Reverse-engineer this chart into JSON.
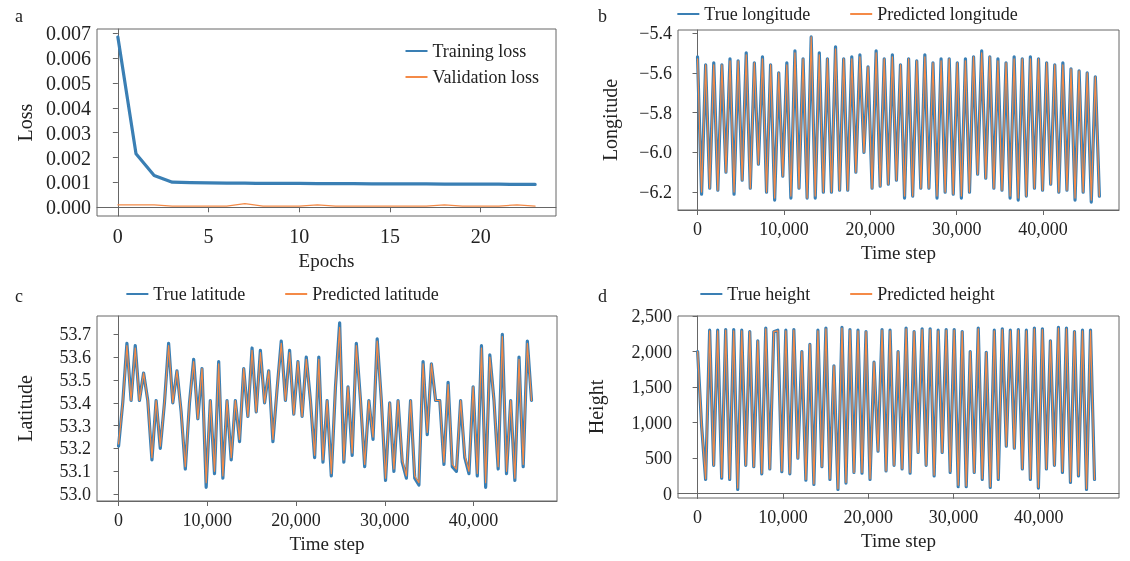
{
  "chart_data": [
    {
      "type": "line",
      "title": "a",
      "xlabel": "Epochs",
      "ylabel": "Loss",
      "legend": "top right",
      "x": [
        0,
        1,
        2,
        3,
        4,
        5,
        6,
        7,
        8,
        9,
        10,
        11,
        12,
        13,
        14,
        15,
        16,
        17,
        18,
        19,
        20,
        21,
        22,
        23
      ],
      "xlim": [
        -1.15,
        24.15
      ],
      "xticks": [
        0,
        5,
        10,
        15,
        20
      ],
      "ylim": [
        -0.00035,
        0.00717
      ],
      "yticks": [
        {
          "value": 0,
          "label": "0.000"
        },
        0.001,
        0.002,
        0.003,
        0.004,
        0.005,
        0.006,
        0.007
      ],
      "series": [
        {
          "name": "Training loss",
          "color": "#3a7fb4",
          "values": [
            0.00685,
            0.00215,
            0.00128,
            0.00101,
            0.00099,
            0.00098,
            0.00097,
            0.00097,
            0.00096,
            0.00096,
            0.00096,
            0.00095,
            0.00095,
            0.00095,
            0.00094,
            0.00094,
            0.00094,
            0.00094,
            0.00093,
            0.00093,
            0.00093,
            0.00093,
            0.00092,
            0.00092
          ]
        },
        {
          "name": "Validation loss",
          "color": "#f48a47",
          "values": [
            0.0001,
            0.0001,
            0.0001,
            5e-05,
            5e-05,
            5e-05,
            5e-05,
            0.00015,
            5e-05,
            5e-05,
            5e-05,
            0.0001,
            5e-05,
            5e-05,
            5e-05,
            5e-05,
            5e-05,
            5e-05,
            0.0001,
            5e-05,
            5e-05,
            5e-05,
            0.0001,
            5e-05
          ]
        }
      ]
    },
    {
      "type": "line",
      "title": "b",
      "xlabel": "Time step",
      "ylabel": "Longitude",
      "legend": "top",
      "x": [
        0,
        470,
        940,
        1410,
        1880,
        2350,
        2820,
        3290,
        3760,
        4230,
        4700,
        5170,
        5640,
        6110,
        6580,
        7050,
        7520,
        7990,
        8460,
        8930,
        9400,
        9870,
        10340,
        10810,
        11280,
        11750,
        12220,
        12690,
        13160,
        13630,
        14100,
        14570,
        15040,
        15510,
        15980,
        16450,
        16920,
        17390,
        17860,
        18330,
        18800,
        19270,
        19740,
        20210,
        20680,
        21150,
        21620,
        22090,
        22560,
        23030,
        23500,
        23970,
        24440,
        24910,
        25380,
        25850,
        26320,
        26790,
        27260,
        27730,
        28200,
        28670,
        29140,
        29610,
        30080,
        30550,
        31020,
        31490,
        31960,
        32430,
        32900,
        33370,
        33840,
        34310,
        34780,
        35250,
        35720,
        36190,
        36660,
        37130,
        37600,
        38070,
        38540,
        39010,
        39480,
        39950,
        40420,
        40890,
        41360,
        41830,
        42300,
        42770,
        43240,
        43710,
        44180,
        44650,
        45120,
        45590,
        46060,
        46530
      ],
      "xlim": [
        -2260,
        48800
      ],
      "xticks": [
        0,
        {
          "value": 10000,
          "label": "10,000"
        },
        {
          "value": 20000,
          "label": "20,000"
        },
        {
          "value": 30000,
          "label": "30,000"
        },
        {
          "value": 40000,
          "label": "40,000"
        }
      ],
      "ylim": [
        -6.29,
        -5.385
      ],
      "yticks": [
        {
          "value": -6.2,
          "label": "−6.2"
        },
        {
          "value": -6.0,
          "label": "−6.0"
        },
        {
          "value": -5.8,
          "label": "−5.8"
        },
        {
          "value": -5.6,
          "label": "−5.6"
        },
        {
          "value": -5.4,
          "label": "−5.4"
        }
      ],
      "series": [
        {
          "name": "True longitude",
          "color": "#3a7fb4",
          "values": [
            -5.52,
            -6.21,
            -5.56,
            -6.18,
            -5.55,
            -6.19,
            -5.56,
            -6.1,
            -5.53,
            -6.21,
            -5.54,
            -6.14,
            -5.5,
            -6.18,
            -5.55,
            -6.06,
            -5.52,
            -6.2,
            -5.56,
            -6.24,
            -5.6,
            -6.12,
            -5.55,
            -6.23,
            -5.49,
            -6.18,
            -5.53,
            -6.23,
            -5.42,
            -6.23,
            -5.5,
            -6.2,
            -5.53,
            -6.2,
            -5.47,
            -6.19,
            -5.53,
            -6.19,
            -5.52,
            -6.1,
            -5.51,
            -6.0,
            -5.57,
            -6.18,
            -5.49,
            -6.17,
            -5.53,
            -6.16,
            -5.51,
            -6.14,
            -5.56,
            -6.23,
            -5.53,
            -6.22,
            -5.54,
            -6.18,
            -5.51,
            -6.18,
            -5.55,
            -6.23,
            -5.53,
            -6.2,
            -5.53,
            -6.21,
            -5.55,
            -6.23,
            -5.53,
            -6.2,
            -5.52,
            -6.11,
            -5.49,
            -6.13,
            -5.52,
            -6.18,
            -5.53,
            -6.19,
            -5.55,
            -6.23,
            -5.52,
            -6.24,
            -5.53,
            -6.22,
            -5.52,
            -6.18,
            -5.53,
            -6.19,
            -5.55,
            -6.16,
            -5.56,
            -6.2,
            -5.55,
            -6.19,
            -5.58,
            -6.24,
            -5.59,
            -6.2,
            -5.6,
            -6.25,
            -5.62,
            -6.22
          ]
        },
        {
          "name": "Predicted longitude",
          "color": "#f48a47",
          "values": [
            -5.53,
            -6.2,
            -5.56,
            -6.18,
            -5.56,
            -6.19,
            -5.56,
            -6.1,
            -5.54,
            -6.2,
            -5.54,
            -6.14,
            -5.51,
            -6.18,
            -5.55,
            -6.06,
            -5.53,
            -6.2,
            -5.56,
            -6.23,
            -5.6,
            -6.12,
            -5.56,
            -6.22,
            -5.5,
            -6.18,
            -5.53,
            -6.23,
            -5.42,
            -6.22,
            -5.51,
            -6.2,
            -5.53,
            -6.2,
            -5.48,
            -6.19,
            -5.53,
            -6.19,
            -5.53,
            -6.1,
            -5.52,
            -6.0,
            -5.57,
            -6.18,
            -5.5,
            -6.17,
            -5.53,
            -6.16,
            -5.52,
            -6.14,
            -5.56,
            -6.22,
            -5.53,
            -6.22,
            -5.54,
            -6.18,
            -5.52,
            -6.18,
            -5.55,
            -6.22,
            -5.54,
            -6.2,
            -5.53,
            -6.21,
            -5.55,
            -6.22,
            -5.54,
            -6.2,
            -5.52,
            -6.11,
            -5.5,
            -6.13,
            -5.52,
            -6.18,
            -5.54,
            -6.19,
            -5.55,
            -6.22,
            -5.53,
            -6.23,
            -5.53,
            -6.22,
            -5.53,
            -6.18,
            -5.53,
            -6.19,
            -5.55,
            -6.16,
            -5.56,
            -6.2,
            -5.56,
            -6.19,
            -5.58,
            -6.23,
            -5.59,
            -6.2,
            -5.6,
            -6.24,
            -5.62,
            -6.22
          ]
        }
      ]
    },
    {
      "type": "line",
      "title": "c",
      "xlabel": "Time step",
      "ylabel": "Latitude",
      "legend": "top",
      "x": [
        0,
        470,
        940,
        1410,
        1880,
        2350,
        2820,
        3290,
        3760,
        4230,
        4700,
        5170,
        5640,
        6110,
        6580,
        7050,
        7520,
        7990,
        8460,
        8930,
        9400,
        9870,
        10340,
        10810,
        11280,
        11750,
        12220,
        12690,
        13160,
        13630,
        14100,
        14570,
        15040,
        15510,
        15980,
        16450,
        16920,
        17390,
        17860,
        18330,
        18800,
        19270,
        19740,
        20210,
        20680,
        21150,
        21620,
        22090,
        22560,
        23030,
        23500,
        23970,
        24440,
        24910,
        25380,
        25850,
        26320,
        26790,
        27260,
        27730,
        28200,
        28670,
        29140,
        29610,
        30080,
        30550,
        31020,
        31490,
        31960,
        32430,
        32900,
        33370,
        33840,
        34310,
        34780,
        35250,
        35720,
        36190,
        36660,
        37130,
        37600,
        38070,
        38540,
        39010,
        39480,
        39950,
        40420,
        40890,
        41360,
        41830,
        42300,
        42770,
        43240,
        43710,
        44180,
        44650,
        45120,
        45590,
        46060,
        46530
      ],
      "xlim": [
        -2430,
        49400
      ],
      "xticks": [
        0,
        {
          "value": 10000,
          "label": "10,000"
        },
        {
          "value": 20000,
          "label": "20,000"
        },
        {
          "value": 30000,
          "label": "30,000"
        },
        {
          "value": 40000,
          "label": "40,000"
        }
      ],
      "ylim": [
        52.97,
        53.78
      ],
      "yticks": [
        {
          "value": 53.0,
          "label": "53.0"
        },
        53.1,
        53.2,
        53.3,
        53.4,
        53.5,
        53.6,
        53.7
      ],
      "series": [
        {
          "name": "True latitude",
          "color": "#3a7fb4",
          "values": [
            53.21,
            53.4,
            53.66,
            53.41,
            53.65,
            53.41,
            53.53,
            53.41,
            53.15,
            53.41,
            53.2,
            53.4,
            53.66,
            53.4,
            53.54,
            53.36,
            53.11,
            53.4,
            53.59,
            53.33,
            53.55,
            53.03,
            53.41,
            53.09,
            53.58,
            53.07,
            53.41,
            53.15,
            53.41,
            53.23,
            53.55,
            53.34,
            53.64,
            53.36,
            53.63,
            53.4,
            53.54,
            53.23,
            53.46,
            53.67,
            53.41,
            53.63,
            53.35,
            53.58,
            53.34,
            53.6,
            53.41,
            53.16,
            53.6,
            53.14,
            53.41,
            53.08,
            53.47,
            53.75,
            53.14,
            53.47,
            53.17,
            53.66,
            53.41,
            53.12,
            53.41,
            53.24,
            53.68,
            53.41,
            53.06,
            53.4,
            53.1,
            53.41,
            53.14,
            53.07,
            53.41,
            53.07,
            53.04,
            53.58,
            53.26,
            53.57,
            53.41,
            53.41,
            53.13,
            53.49,
            53.12,
            53.1,
            53.41,
            53.16,
            53.09,
            53.47,
            53.08,
            53.65,
            53.03,
            53.61,
            53.41,
            53.11,
            53.7,
            53.09,
            53.41,
            53.06,
            53.6,
            53.12,
            53.67,
            53.41
          ]
        },
        {
          "name": "Predicted latitude",
          "color": "#f48a47",
          "values": [
            53.22,
            53.4,
            53.65,
            53.41,
            53.64,
            53.41,
            53.53,
            53.41,
            53.16,
            53.41,
            53.21,
            53.4,
            53.65,
            53.4,
            53.54,
            53.36,
            53.12,
            53.4,
            53.58,
            53.33,
            53.55,
            53.05,
            53.41,
            53.1,
            53.57,
            53.08,
            53.41,
            53.16,
            53.41,
            53.24,
            53.55,
            53.34,
            53.63,
            53.36,
            53.62,
            53.4,
            53.54,
            53.24,
            53.46,
            53.66,
            53.41,
            53.62,
            53.35,
            53.58,
            53.34,
            53.59,
            53.41,
            53.17,
            53.59,
            53.15,
            53.41,
            53.09,
            53.47,
            53.73,
            53.15,
            53.47,
            53.18,
            53.65,
            53.41,
            53.13,
            53.41,
            53.25,
            53.67,
            53.41,
            53.07,
            53.4,
            53.11,
            53.41,
            53.15,
            53.08,
            53.41,
            53.08,
            53.05,
            53.57,
            53.27,
            53.57,
            53.41,
            53.41,
            53.14,
            53.48,
            53.13,
            53.11,
            53.41,
            53.17,
            53.1,
            53.47,
            53.09,
            53.64,
            53.05,
            53.6,
            53.41,
            53.12,
            53.69,
            53.1,
            53.41,
            53.07,
            53.59,
            53.13,
            53.66,
            53.41
          ]
        }
      ]
    },
    {
      "type": "line",
      "title": "d",
      "xlabel": "Time step",
      "ylabel": "Height",
      "legend": "top",
      "x": [
        0,
        470,
        940,
        1410,
        1880,
        2350,
        2820,
        3290,
        3760,
        4230,
        4700,
        5170,
        5640,
        6110,
        6580,
        7050,
        7520,
        7990,
        8460,
        8930,
        9400,
        9870,
        10340,
        10810,
        11280,
        11750,
        12220,
        12690,
        13160,
        13630,
        14100,
        14570,
        15040,
        15510,
        15980,
        16450,
        16920,
        17390,
        17860,
        18330,
        18800,
        19270,
        19740,
        20210,
        20680,
        21150,
        21620,
        22090,
        22560,
        23030,
        23500,
        23970,
        24440,
        24910,
        25380,
        25850,
        26320,
        26790,
        27260,
        27730,
        28200,
        28670,
        29140,
        29610,
        30080,
        30550,
        31020,
        31490,
        31960,
        32430,
        32900,
        33370,
        33840,
        34310,
        34780,
        35250,
        35720,
        36190,
        36660,
        37130,
        37600,
        38070,
        38540,
        39010,
        39480,
        39950,
        40420,
        40890,
        41360,
        41830,
        42300,
        42770,
        43240,
        43710,
        44180,
        44650,
        45120,
        45590,
        46060,
        46530
      ],
      "xlim": [
        -2300,
        49400
      ],
      "xticks": [
        0,
        {
          "value": 10000,
          "label": "10,000"
        },
        {
          "value": 20000,
          "label": "20,000"
        },
        {
          "value": 30000,
          "label": "30,000"
        },
        {
          "value": 40000,
          "label": "40,000"
        }
      ],
      "ylim": [
        -60,
        2500
      ],
      "yticks": [
        0,
        500,
        {
          "value": 1000,
          "label": "1,000"
        },
        {
          "value": 1500,
          "label": "1,500"
        },
        {
          "value": 2000,
          "label": "2,000"
        },
        {
          "value": 2500,
          "label": "2,500"
        }
      ],
      "series": [
        {
          "name": "True height",
          "color": "#3a7fb4",
          "values": [
            2000,
            950,
            200,
            2300,
            400,
            2300,
            220,
            2310,
            200,
            2310,
            60,
            2300,
            400,
            2280,
            380,
            2150,
            280,
            2330,
            350,
            2280,
            2300,
            310,
            2300,
            280,
            2310,
            500,
            2000,
            190,
            2100,
            130,
            2300,
            380,
            2330,
            200,
            1800,
            60,
            2340,
            150,
            2310,
            300,
            2300,
            290,
            2280,
            200,
            1850,
            600,
            2310,
            320,
            2300,
            400,
            2000,
            350,
            2330,
            290,
            2280,
            580,
            2320,
            400,
            2320,
            250,
            2300,
            580,
            2310,
            300,
            2310,
            100,
            2280,
            100,
            2000,
            300,
            2330,
            200,
            1990,
            90,
            2300,
            200,
            2320,
            670,
            2300,
            640,
            2310,
            350,
            2300,
            200,
            2330,
            80,
            2320,
            350,
            2150,
            400,
            2340,
            300,
            2330,
            160,
            2280,
            250,
            2300,
            60,
            2300,
            200
          ]
        },
        {
          "name": "Predicted height",
          "color": "#f48a47",
          "values": [
            2000,
            950,
            210,
            2290,
            400,
            2290,
            230,
            2300,
            210,
            2290,
            80,
            2290,
            400,
            2280,
            380,
            2150,
            290,
            2320,
            350,
            2280,
            2290,
            320,
            2290,
            290,
            2300,
            500,
            2000,
            200,
            2100,
            140,
            2290,
            380,
            2320,
            210,
            1800,
            70,
            2330,
            160,
            2300,
            300,
            2290,
            300,
            2280,
            210,
            1850,
            600,
            2300,
            320,
            2290,
            400,
            2000,
            350,
            2320,
            300,
            2280,
            580,
            2310,
            400,
            2310,
            260,
            2290,
            580,
            2300,
            310,
            2300,
            120,
            2280,
            110,
            2000,
            300,
            2320,
            210,
            1990,
            100,
            2290,
            210,
            2310,
            670,
            2290,
            640,
            2300,
            350,
            2290,
            210,
            2320,
            90,
            2310,
            350,
            2150,
            400,
            2330,
            310,
            2320,
            170,
            2280,
            260,
            2290,
            70,
            2290,
            200
          ]
        }
      ]
    }
  ]
}
